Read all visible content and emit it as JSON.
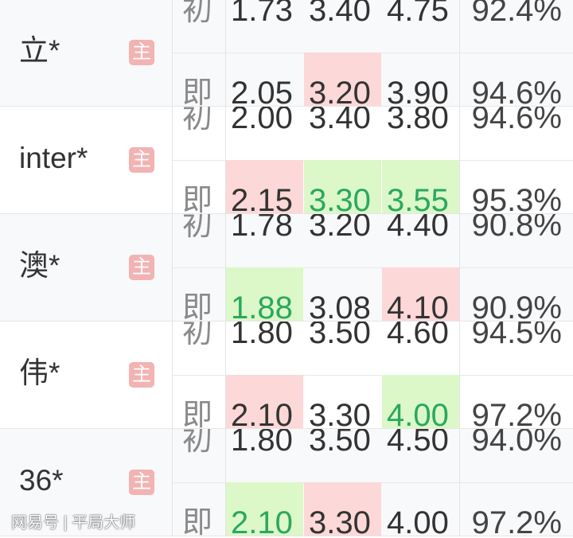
{
  "colors": {
    "up_bg": "#fdd8d8",
    "down_bg": "#dcf7c8",
    "down_text": "#2aa860",
    "home_badge": "#f2b3b3"
  },
  "labels": {
    "initial": "初",
    "live": "即",
    "home_badge": "主"
  },
  "rows": [
    {
      "team": "立*",
      "initial": [
        "1.73",
        "3.40",
        "4.75",
        "92.4%"
      ],
      "live": [
        "2.05",
        "3.20",
        "3.90",
        "94.6%"
      ],
      "live_marks": [
        "",
        "up",
        "",
        ""
      ]
    },
    {
      "team": "inter*",
      "initial": [
        "2.00",
        "3.40",
        "3.80",
        "94.6%"
      ],
      "live": [
        "2.15",
        "3.30",
        "3.55",
        "95.3%"
      ],
      "live_marks": [
        "up",
        "down",
        "down",
        ""
      ]
    },
    {
      "team": "澳*",
      "initial": [
        "1.78",
        "3.20",
        "4.40",
        "90.8%"
      ],
      "live": [
        "1.88",
        "3.08",
        "4.10",
        "90.9%"
      ],
      "live_marks": [
        "down",
        "",
        "up",
        ""
      ]
    },
    {
      "team": "伟*",
      "initial": [
        "1.80",
        "3.50",
        "4.60",
        "94.5%"
      ],
      "live": [
        "2.10",
        "3.30",
        "4.00",
        "97.2%"
      ],
      "live_marks": [
        "up",
        "",
        "down",
        ""
      ]
    },
    {
      "team": "36*",
      "initial": [
        "1.80",
        "3.50",
        "4.50",
        "94.0%"
      ],
      "live": [
        "2.10",
        "3.30",
        "4.00",
        "97.2%"
      ],
      "live_marks": [
        "down",
        "up",
        "",
        ""
      ]
    }
  ],
  "watermark": "网易号 | 平局大师"
}
